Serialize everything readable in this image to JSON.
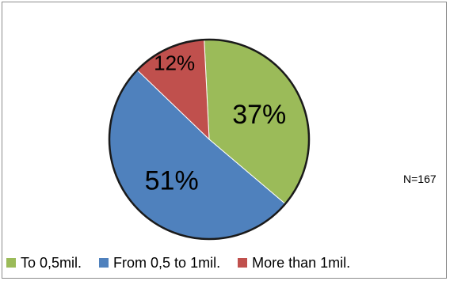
{
  "chart_data": {
    "type": "pie",
    "title": "",
    "note": "N=167",
    "legend_position": "bottom",
    "slices": [
      {
        "label": "To 0,5mil.",
        "value": 37,
        "display": "37%",
        "color": "#9bbb59"
      },
      {
        "label": "From 0,5 to 1mil.",
        "value": 51,
        "display": "51%",
        "color": "#4f81bd"
      },
      {
        "label": "More than 1mil.",
        "value": 12,
        "display": "12%",
        "color": "#c0504d"
      }
    ]
  }
}
